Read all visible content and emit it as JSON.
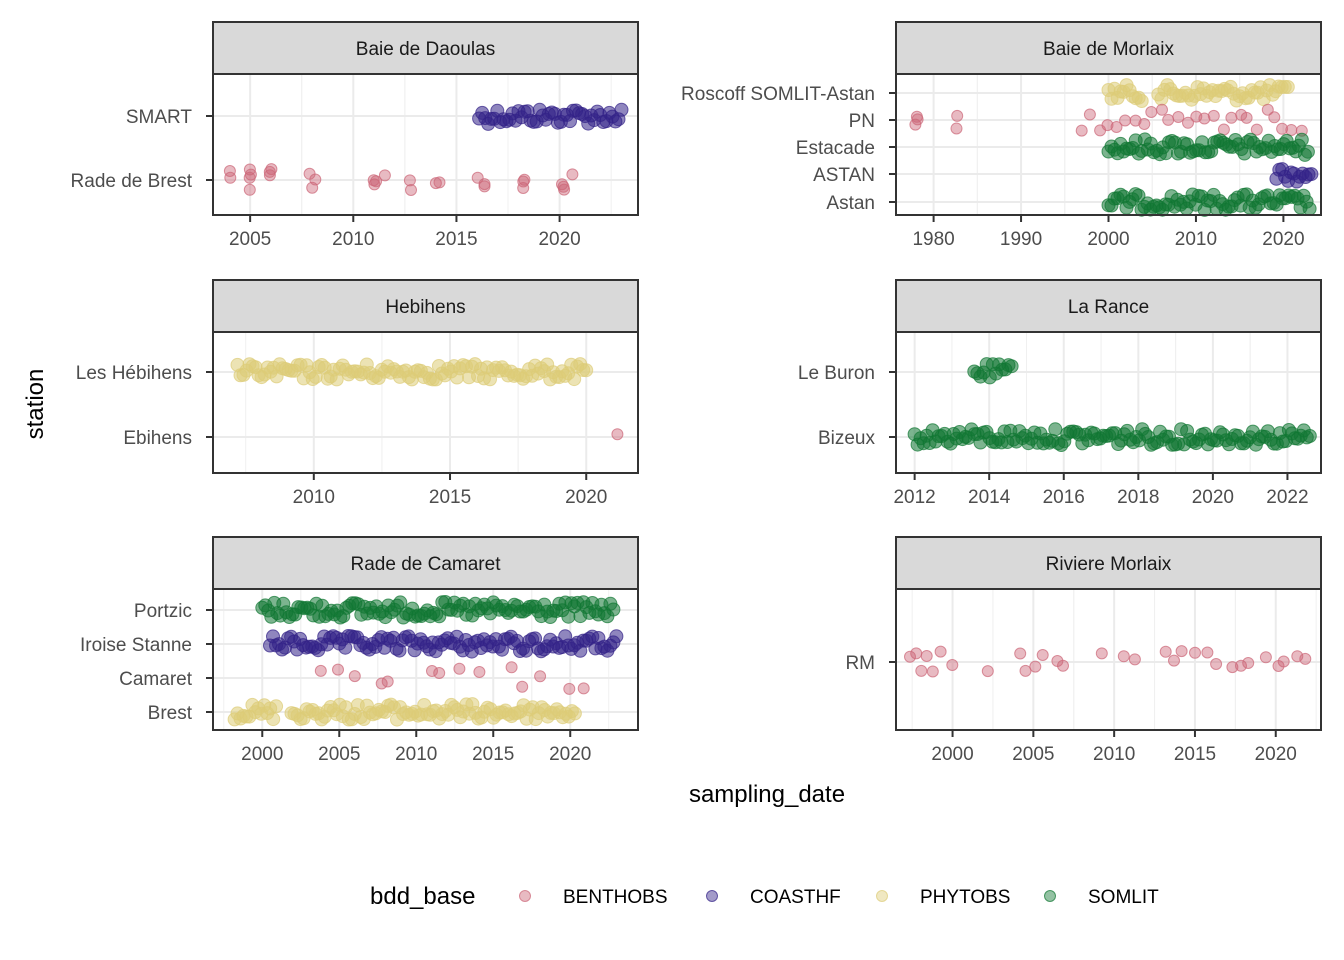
{
  "chart_data": {
    "type": "scatter",
    "xlabel": "sampling_date",
    "ylabel": "station",
    "grid": true,
    "legend": {
      "title": "bdd_base",
      "position": "bottom",
      "entries": [
        {
          "name": "BENTHOBS",
          "color": "#CC6677"
        },
        {
          "name": "COASTHF",
          "color": "#332288"
        },
        {
          "name": "PHYTOBS",
          "color": "#DDCC77"
        },
        {
          "name": "SOMLIT",
          "color": "#117733"
        }
      ]
    },
    "colors": {
      "BENTHOBS": "#CC6677",
      "COASTHF": "#332288",
      "PHYTOBS": "#DDCC77",
      "SOMLIT": "#117733"
    },
    "panels": [
      {
        "title": "Baie de Daoulas",
        "stations": [
          "SMART",
          "Rade de Brest"
        ],
        "xlim": [
          2003.2,
          2023.8
        ],
        "x_ticks": [
          2005,
          2010,
          2015,
          2020
        ],
        "series": [
          {
            "base": "COASTHF",
            "station": "SMART",
            "kind": "band",
            "start": 2016.1,
            "end": 2023.0
          },
          {
            "base": "BENTHOBS",
            "station": "Rade de Brest",
            "kind": "points",
            "x": [
              2004.0,
              2004.0,
              2005.0,
              2005.0,
              2005.0,
              2005.0,
              2006.0,
              2006.0,
              2006.0,
              2007.9,
              2008.1,
              2008.0,
              2011.0,
              2011.2,
              2011.0,
              2011.5,
              2012.8,
              2012.8,
              2014.1,
              2014.1,
              2016.0,
              2016.3,
              2016.4,
              2018.2,
              2018.3,
              2018.2,
              2020.1,
              2020.3,
              2020.7,
              2020.2
            ]
          },
          {
            "base": "BENTHOBS",
            "station": "SMART",
            "kind": "points",
            "x": []
          }
        ]
      },
      {
        "title": "Baie de Morlaix",
        "stations": [
          "Roscoff SOMLIT-Astan",
          "PN",
          "Estacade",
          "ASTAN",
          "Astan"
        ],
        "xlim": [
          1975.7,
          2024.3
        ],
        "x_ticks": [
          1980,
          1990,
          2000,
          2010,
          2020
        ],
        "series": [
          {
            "base": "PHYTOBS",
            "station": "Roscoff SOMLIT-Astan",
            "kind": "band",
            "start": 2000.0,
            "end": 2003.8
          },
          {
            "base": "PHYTOBS",
            "station": "Roscoff SOMLIT-Astan",
            "kind": "band",
            "start": 2005.7,
            "end": 2020.5
          },
          {
            "base": "BENTHOBS",
            "station": "PN",
            "kind": "points",
            "x": [
              1977.8,
              1978.0,
              1978.3,
              1982.5,
              1982.8,
              1997.0,
              1998.0,
              1999.0,
              2000.0,
              2001.0,
              2002.0,
              2003.0,
              2004.0,
              2005.0,
              2006.0,
              2007.0,
              2008.0,
              2009.0,
              2010.0,
              2011.0,
              2012.0,
              2013.0,
              2014.0,
              2015.0,
              2016.0,
              2017.0,
              2018.0,
              2019.0,
              2020.0,
              2021.0,
              2022.0
            ]
          },
          {
            "base": "SOMLIT",
            "station": "Estacade",
            "kind": "band",
            "start": 2000.0,
            "end": 2022.8
          },
          {
            "base": "COASTHF",
            "station": "ASTAN",
            "kind": "band",
            "start": 2019.2,
            "end": 2023.2
          },
          {
            "base": "SOMLIT",
            "station": "Astan",
            "kind": "band",
            "start": 2000.0,
            "end": 2023.0
          }
        ]
      },
      {
        "title": "Hebihens",
        "stations": [
          "Les Hébihens",
          "Ebihens"
        ],
        "xlim": [
          2006.3,
          2021.9
        ],
        "x_ticks": [
          2010,
          2015,
          2020
        ],
        "series": [
          {
            "base": "PHYTOBS",
            "station": "Les Hébihens",
            "kind": "band",
            "start": 2007.2,
            "end": 2020.0
          },
          {
            "base": "BENTHOBS",
            "station": "Ebihens",
            "kind": "points",
            "x": [
              2021.2
            ]
          }
        ]
      },
      {
        "title": "La Rance",
        "stations": [
          "Le Buron",
          "Bizeux"
        ],
        "xlim": [
          2011.5,
          2022.9
        ],
        "x_ticks": [
          2012,
          2014,
          2016,
          2018,
          2020,
          2022
        ],
        "series": [
          {
            "base": "SOMLIT",
            "station": "Le Buron",
            "kind": "band",
            "start": 2013.6,
            "end": 2014.6
          },
          {
            "base": "SOMLIT",
            "station": "Bizeux",
            "kind": "band",
            "start": 2012.0,
            "end": 2022.6
          }
        ]
      },
      {
        "title": "Rade de Camaret",
        "stations": [
          "Portzic",
          "Iroise Stanne",
          "Camaret",
          "Brest"
        ],
        "xlim": [
          1996.8,
          2024.4
        ],
        "x_ticks": [
          2000,
          2005,
          2010,
          2015,
          2020
        ],
        "series": [
          {
            "base": "SOMLIT",
            "station": "Portzic",
            "kind": "band",
            "start": 2000.0,
            "end": 2022.8
          },
          {
            "base": "COASTHF",
            "station": "Iroise Stanne",
            "kind": "band",
            "start": 2000.5,
            "end": 2023.0
          },
          {
            "base": "BENTHOBS",
            "station": "Camaret",
            "kind": "points",
            "x": [
              2003.9,
              2005.0,
              2006.0,
              2007.8,
              2008.2,
              2011.0,
              2011.6,
              2012.8,
              2014.0,
              2016.1,
              2017.0,
              2018.0,
              2020.0,
              2020.8
            ]
          },
          {
            "base": "PHYTOBS",
            "station": "Brest",
            "kind": "band",
            "start": 1998.2,
            "end": 2000.9
          },
          {
            "base": "PHYTOBS",
            "station": "Brest",
            "kind": "band",
            "start": 2001.9,
            "end": 2020.3
          }
        ]
      },
      {
        "title": "Riviere Morlaix",
        "stations": [
          "RM"
        ],
        "xlim": [
          1996.5,
          2022.8
        ],
        "x_ticks": [
          2000,
          2005,
          2010,
          2015,
          2020
        ],
        "series": [
          {
            "base": "BENTHOBS",
            "station": "RM",
            "kind": "points",
            "x": [
              1997.3,
              1997.8,
              1998.1,
              1998.4,
              1998.9,
              1999.3,
              1999.9,
              2002.1,
              2004.2,
              2004.5,
              2005.1,
              2005.6,
              2006.4,
              2006.8,
              2009.3,
              2010.7,
              2011.2,
              2013.1,
              2013.6,
              2014.2,
              2015.0,
              2015.8,
              2016.4,
              2017.2,
              2017.9,
              2018.4,
              2019.3,
              2020.1,
              2020.6,
              2021.4,
              2021.9
            ]
          }
        ]
      }
    ]
  }
}
